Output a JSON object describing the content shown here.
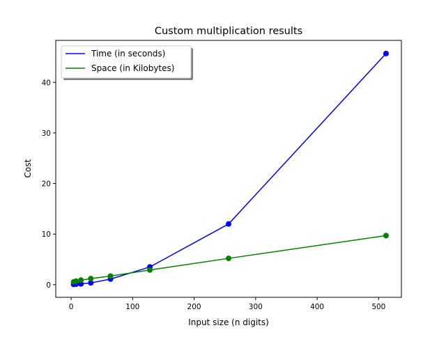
{
  "chart_data": {
    "type": "line",
    "title": "Custom multiplication results",
    "xlabel": "Input size (n digits)",
    "ylabel": "Cost",
    "x": [
      4,
      8,
      16,
      32,
      64,
      128,
      256,
      512
    ],
    "series": [
      {
        "name": "Time (in seconds)",
        "color": "#0000ff",
        "values": [
          0.05,
          0.1,
          0.15,
          0.35,
          1.1,
          3.5,
          12.0,
          45.7
        ]
      },
      {
        "name": "Space (in Kilobytes)",
        "color": "#008000",
        "values": [
          0.55,
          0.7,
          0.9,
          1.2,
          1.7,
          2.9,
          5.2,
          9.7
        ]
      }
    ],
    "xlim": [
      -25,
      537
    ],
    "ylim": [
      -2.5,
      48.3
    ],
    "xticks": [
      0,
      100,
      200,
      300,
      400,
      500
    ],
    "yticks": [
      0,
      10,
      20,
      30,
      40
    ],
    "grid": false,
    "legend_position": "upper-left",
    "markers": "circle"
  }
}
